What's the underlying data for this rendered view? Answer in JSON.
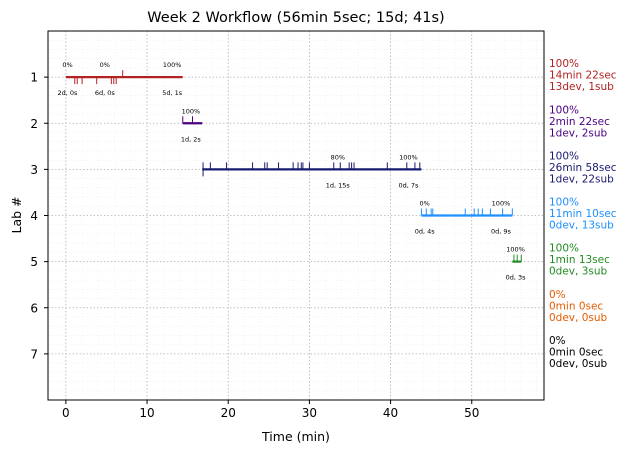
{
  "chart_data": {
    "type": "gantt",
    "title": "Week 2 Workflow (56min 5sec; 15d; 41s)",
    "xlabel": "Time (min)",
    "ylabel": "Lab #",
    "xlim": [
      -2.2,
      58.9
    ],
    "ylim": [
      8.0,
      0.0
    ],
    "xticks": [
      0,
      10,
      20,
      30,
      40,
      50
    ],
    "yticks": [
      1,
      2,
      3,
      4,
      5,
      6,
      7
    ],
    "grid": true,
    "labs": [
      {
        "lab": 1,
        "color": "#b22222",
        "summary": [
          "100%",
          "14min 22sec",
          "13dev, 1sub"
        ],
        "segments": [
          [
            0,
            14.4
          ]
        ],
        "ticks": [
          1.1,
          1.4,
          2.0,
          3.8,
          5.6,
          5.9,
          6.2
        ],
        "sub_ticks": [
          7.0
        ],
        "annotations": [
          {
            "x": 0.2,
            "pct": "0%",
            "label": "2d, 0s"
          },
          {
            "x": 4.8,
            "pct": "0%",
            "label": "6d, 0s"
          },
          {
            "x": 13.1,
            "pct": "100%",
            "label": "5d, 1s"
          }
        ]
      },
      {
        "lab": 2,
        "color": "#4b0082",
        "summary": [
          "100%",
          "2min 22sec",
          "1dev, 2sub"
        ],
        "segments": [
          [
            14.4,
            16.8
          ]
        ],
        "ticks": [],
        "sub_ticks": [
          14.4,
          15.6
        ],
        "annotations": [
          {
            "x": 15.4,
            "pct": "100%",
            "label": "1d, 2s"
          }
        ]
      },
      {
        "lab": 3,
        "color": "#191970",
        "summary": [
          "100%",
          "26min 58sec",
          "1dev, 22sub"
        ],
        "segments": [
          [
            16.8,
            43.8
          ]
        ],
        "ticks": [
          16.9
        ],
        "sub_ticks": [
          16.9,
          17.8,
          19.8,
          23.0,
          24.5,
          24.8,
          26.2,
          28.0,
          28.6,
          29.0,
          29.2,
          30.0,
          33.0,
          33.8,
          34.9,
          35.2,
          35.5,
          39.6,
          42.0,
          43.0,
          43.6
        ],
        "annotations": [
          {
            "x": 33.5,
            "pct": "80%",
            "label": "1d, 15s"
          },
          {
            "x": 42.2,
            "pct": "100%",
            "label": "0d, 7s"
          }
        ]
      },
      {
        "lab": 4,
        "color": "#1e90ff",
        "summary": [
          "100%",
          "11min 10sec",
          "0dev, 13sub"
        ],
        "segments": [
          [
            43.8,
            55.0
          ]
        ],
        "ticks": [],
        "sub_ticks": [
          43.8,
          44.4,
          45.0,
          45.2,
          49.2,
          50.3,
          50.8,
          51.3,
          52.3,
          53.8,
          55.0
        ],
        "annotations": [
          {
            "x": 44.2,
            "pct": "0%",
            "label": "0d, 4s"
          },
          {
            "x": 53.6,
            "pct": "100%",
            "label": "0d, 9s"
          }
        ]
      },
      {
        "lab": 5,
        "color": "#228b22",
        "summary": [
          "100%",
          "1min 13sec",
          "0dev, 3sub"
        ],
        "segments": [
          [
            55.0,
            56.1
          ]
        ],
        "ticks": [],
        "sub_ticks": [
          55.2,
          55.6,
          56.1
        ],
        "annotations": [
          {
            "x": 55.4,
            "pct": "100%",
            "label": "0d, 3s"
          }
        ]
      },
      {
        "lab": 6,
        "color": "#e65c00",
        "summary": [
          "0%",
          "0min 0sec",
          "0dev, 0sub"
        ],
        "segments": [],
        "ticks": [],
        "sub_ticks": [],
        "annotations": []
      },
      {
        "lab": 7,
        "color": "#000000",
        "summary": [
          "0%",
          "0min 0sec",
          "0dev, 0sub"
        ],
        "segments": [],
        "ticks": [],
        "sub_ticks": [],
        "annotations": []
      }
    ]
  }
}
